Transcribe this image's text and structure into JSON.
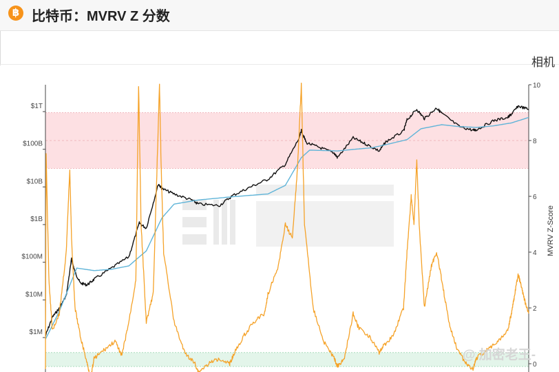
{
  "header": {
    "logo_glyph": "฿",
    "title": "比特币：MVRV Z 分数",
    "right_label": "相机"
  },
  "watermark_text": "@ 加密老王-",
  "colors": {
    "price": "#111111",
    "realized_price": "#5fb4d8",
    "zscore": "#f5a228",
    "red_band": "#fde0e3",
    "green_band": "#e3f5ea",
    "accent": "#f7931a"
  },
  "chart_data": {
    "type": "line",
    "title": "",
    "left_axis": {
      "scale": "log",
      "ticks": [
        "$1M",
        "$10M",
        "$100M",
        "$1B",
        "$10B",
        "$100B",
        "$1T"
      ]
    },
    "right_axis": {
      "label": "MVRV Z-Score",
      "range": [
        0,
        10
      ],
      "ticks": [
        "0",
        "2",
        "4",
        "6",
        "8",
        "10"
      ]
    },
    "bands": [
      {
        "zone": "overvalued",
        "from": 7,
        "to": 9,
        "color": "red"
      },
      {
        "zone": "undervalued",
        "from": -0.1,
        "to": 0.4,
        "color": "green"
      }
    ],
    "x_range": [
      2010.6,
      2024.5
    ],
    "series": [
      {
        "key": "price",
        "axis": "left",
        "color": "#111111",
        "x": [
          2010.6,
          2010.8,
          2011.0,
          2011.2,
          2011.35,
          2011.45,
          2011.6,
          2011.8,
          2012.0,
          2012.5,
          2013.0,
          2013.3,
          2013.5,
          2013.85,
          2013.95,
          2014.3,
          2014.8,
          2015.0,
          2015.6,
          2016.0,
          2016.5,
          2017.0,
          2017.5,
          2017.9,
          2017.96,
          2018.1,
          2018.5,
          2018.9,
          2019.0,
          2019.45,
          2019.8,
          2020.2,
          2020.4,
          2020.9,
          2021.0,
          2021.28,
          2021.5,
          2021.85,
          2022.0,
          2022.5,
          2022.9,
          2023.0,
          2023.5,
          2023.9,
          2024.0,
          2024.2,
          2024.5
        ],
        "y": [
          1100000,
          3500000,
          6000000,
          13000000,
          120000000,
          55000000,
          28000000,
          25000000,
          35000000,
          70000000,
          140000000,
          1100000000,
          800000000,
          12000000000,
          9000000000,
          6500000000,
          4500000000,
          3500000000,
          3200000000,
          6000000000,
          10000000000,
          16000000000,
          40000000000,
          200000000000,
          320000000000,
          150000000000,
          110000000000,
          80000000000,
          60000000000,
          200000000000,
          140000000000,
          90000000000,
          160000000000,
          300000000000,
          600000000000,
          1150000000000,
          650000000000,
          1250000000000,
          900000000000,
          400000000000,
          320000000000,
          330000000000,
          580000000000,
          700000000000,
          850000000000,
          1400000000000,
          1150000000000
        ]
      },
      {
        "key": "realized_price",
        "axis": "left",
        "color": "#5fb4d8",
        "x": [
          2010.6,
          2011.0,
          2011.5,
          2012.0,
          2012.5,
          2013.0,
          2013.5,
          2013.95,
          2014.3,
          2015.0,
          2016.0,
          2017.0,
          2017.5,
          2017.96,
          2018.2,
          2019.0,
          2019.5,
          2020.0,
          2020.5,
          2021.0,
          2021.4,
          2022.0,
          2022.5,
          2023.0,
          2023.5,
          2024.0,
          2024.5
        ],
        "y": [
          900000,
          5000000,
          70000000,
          60000000,
          65000000,
          80000000,
          200000000,
          1500000000,
          3500000000,
          4500000000,
          5500000000,
          6500000000,
          11000000000,
          60000000000,
          95000000000,
          90000000000,
          100000000000,
          110000000000,
          140000000000,
          180000000000,
          350000000000,
          450000000000,
          400000000000,
          380000000000,
          420000000000,
          500000000000,
          700000000000
        ]
      },
      {
        "key": "zscore",
        "axis": "right",
        "color": "#f5a228",
        "x": [
          2010.6,
          2010.62,
          2010.7,
          2010.8,
          2011.0,
          2011.2,
          2011.3,
          2011.35,
          2011.45,
          2011.6,
          2011.8,
          2011.9,
          2012.0,
          2012.3,
          2012.6,
          2012.8,
          2013.0,
          2013.2,
          2013.28,
          2013.35,
          2013.5,
          2013.7,
          2013.88,
          2013.93,
          2014.0,
          2014.3,
          2014.6,
          2014.9,
          2015.0,
          2015.3,
          2015.6,
          2015.9,
          2016.0,
          2016.3,
          2016.6,
          2016.9,
          2017.0,
          2017.3,
          2017.5,
          2017.7,
          2017.85,
          2017.96,
          2018.05,
          2018.3,
          2018.6,
          2018.9,
          2019.0,
          2019.2,
          2019.45,
          2019.6,
          2019.9,
          2020.2,
          2020.3,
          2020.6,
          2020.9,
          2021.0,
          2021.12,
          2021.2,
          2021.28,
          2021.35,
          2021.5,
          2021.7,
          2021.85,
          2022.0,
          2022.2,
          2022.45,
          2022.7,
          2022.9,
          2023.0,
          2023.3,
          2023.6,
          2023.9,
          2024.0,
          2024.1,
          2024.2,
          2024.3,
          2024.4,
          2024.5
        ],
        "y": [
          -0.2,
          7.5,
          3,
          1.2,
          1.8,
          4,
          7,
          4.5,
          2,
          1,
          0,
          -0.5,
          0.2,
          0.5,
          0.8,
          0.3,
          1.5,
          3,
          10,
          5,
          1.5,
          2.5,
          10,
          7,
          4,
          1.5,
          0.4,
          0,
          -0.3,
          0,
          0.2,
          0,
          0.3,
          1,
          1.5,
          1.8,
          2.5,
          3.5,
          5,
          4.5,
          7,
          10,
          5,
          2,
          0.8,
          0.2,
          -0.1,
          0.2,
          1.8,
          1.3,
          1,
          0.4,
          0.6,
          1,
          2,
          4,
          6,
          5,
          7.3,
          5,
          2,
          3.5,
          4,
          3,
          1.5,
          0.5,
          0,
          -0.2,
          0.2,
          0.5,
          0.8,
          1.2,
          1.8,
          2.5,
          3.2,
          2.7,
          2.2,
          1.8
        ]
      }
    ],
    "legend": "none",
    "grid": false
  }
}
